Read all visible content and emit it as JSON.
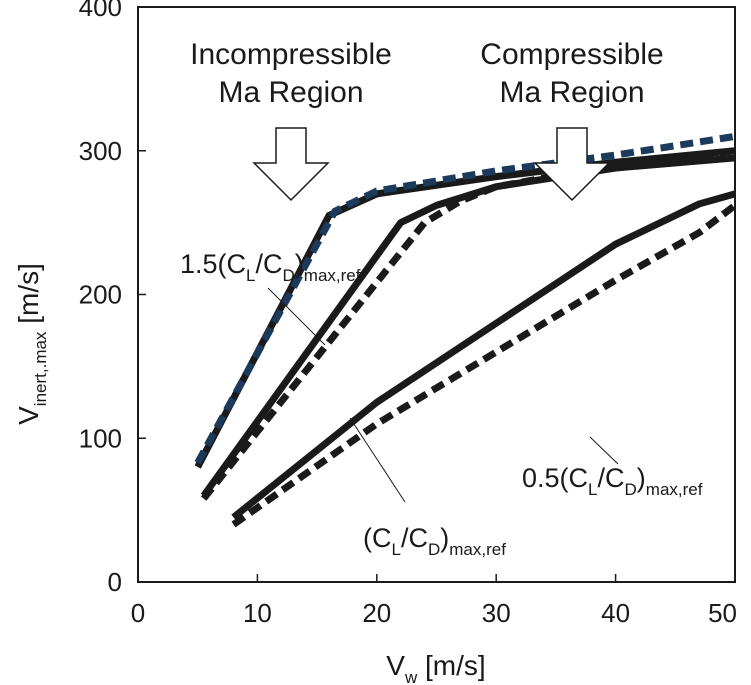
{
  "chart_data": {
    "type": "line",
    "xlabel": {
      "main": "V",
      "sub": "w",
      "unit": " [m/s]"
    },
    "ylabel": {
      "main": "V",
      "sub": "inert,.max",
      "unit": " [m/s]"
    },
    "xlim": [
      0,
      50
    ],
    "ylim": [
      0,
      400
    ],
    "x_ticks": [
      "0",
      "10",
      "20",
      "30",
      "40",
      "50"
    ],
    "y_ticks": [
      "0",
      "100",
      "200",
      "300",
      "400"
    ],
    "grid": false,
    "annotations": [
      {
        "id": "incompressible",
        "lines": [
          "Incompressible",
          "Ma Region"
        ],
        "x": 13,
        "arrow": "down"
      },
      {
        "id": "compressible",
        "lines": [
          "Compressible",
          "Ma Region"
        ],
        "x": 36.5,
        "arrow": "down"
      }
    ],
    "series_labels": [
      {
        "id": "high",
        "a": "1.5(C",
        "b": "L",
        "c": "/C",
        "d": "D",
        "e": ")",
        "f": "max,ref"
      },
      {
        "id": "mid",
        "a": "(C",
        "b": "L",
        "c": "/C",
        "d": "D",
        "e": ")",
        "f": "max,ref"
      },
      {
        "id": "low",
        "a": "0.5(C",
        "b": "L",
        "c": "/C",
        "d": "D",
        "e": ")",
        "f": "max,ref"
      }
    ],
    "series": [
      {
        "group": "high",
        "style": "solid",
        "color": "#1a1a1a",
        "x": [
          5,
          16,
          20,
          30,
          40,
          50
        ],
        "y": [
          80,
          255,
          270,
          282,
          292,
          300
        ]
      },
      {
        "group": "high",
        "style": "dashed",
        "color": "#1b3a5c",
        "x": [
          5,
          16.5,
          20,
          30,
          40,
          50
        ],
        "y": [
          83,
          258,
          272,
          286,
          297,
          310
        ]
      },
      {
        "group": "mid",
        "style": "solid",
        "color": "#1a1a1a",
        "x": [
          5.5,
          22,
          25,
          30,
          40,
          50
        ],
        "y": [
          60,
          250,
          262,
          275,
          288,
          295
        ]
      },
      {
        "group": "mid",
        "style": "dashed",
        "color": "#1a1a1a",
        "x": [
          5.5,
          24,
          27,
          30,
          40,
          50
        ],
        "y": [
          58,
          250,
          265,
          275,
          290,
          300
        ]
      },
      {
        "group": "low",
        "style": "solid",
        "color": "#1a1a1a",
        "x": [
          8,
          20,
          30,
          40,
          47,
          50
        ],
        "y": [
          45,
          125,
          180,
          235,
          263,
          270
        ]
      },
      {
        "group": "low",
        "style": "dashed",
        "color": "#1a1a1a",
        "x": [
          8,
          20,
          30,
          40,
          47,
          50
        ],
        "y": [
          40,
          110,
          160,
          210,
          243,
          262
        ]
      }
    ]
  }
}
